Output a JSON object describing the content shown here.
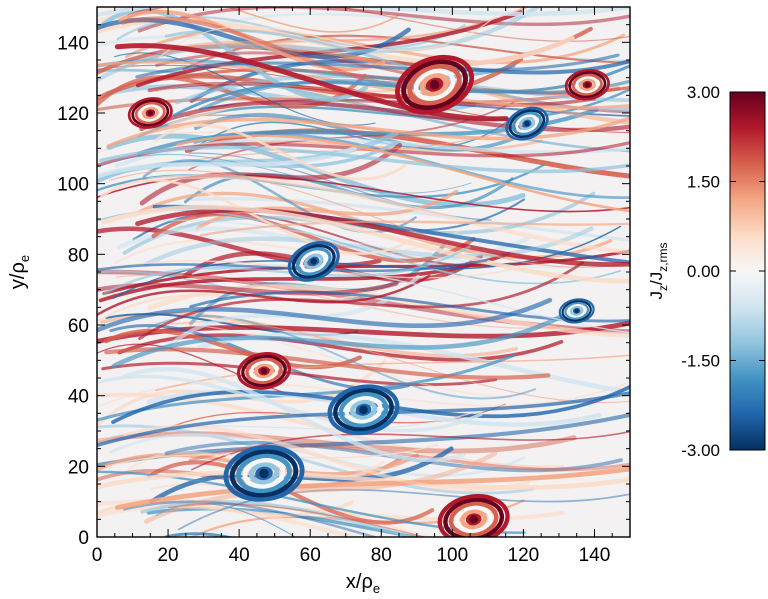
{
  "chart_data": {
    "type": "heatmap",
    "title": "",
    "x_axis": {
      "label": "x/ρ",
      "label_sub": "e",
      "range": [
        0,
        150
      ],
      "ticks": [
        0,
        20,
        40,
        60,
        80,
        100,
        120,
        140
      ]
    },
    "y_axis": {
      "label": "y/ρ",
      "label_sub": "e",
      "range": [
        0,
        150
      ],
      "ticks": [
        0,
        20,
        40,
        60,
        80,
        100,
        120,
        140
      ]
    },
    "colorbar": {
      "label": "J",
      "label_sub1": "z",
      "label_mid": "/J",
      "label_sub2": "z,rms",
      "range": [
        -3.0,
        3.0
      ],
      "ticks": [
        "3.00",
        "1.50",
        "0.00",
        "-1.50",
        "-3.00"
      ],
      "colormap": [
        "#053061",
        "#2166ac",
        "#4393c3",
        "#92c5de",
        "#d1e5f0",
        "#f7f7f7",
        "#fddbc7",
        "#f4a582",
        "#d6604d",
        "#b2182b",
        "#67001f"
      ]
    },
    "features": [
      {
        "kind": "vortex",
        "x": 47,
        "y": 18,
        "r": 9,
        "sign": -1
      },
      {
        "kind": "vortex",
        "x": 75,
        "y": 36,
        "r": 8,
        "sign": -1
      },
      {
        "kind": "vortex",
        "x": 61,
        "y": 78,
        "r": 6,
        "sign": -1
      },
      {
        "kind": "vortex",
        "x": 135,
        "y": 64,
        "r": 4,
        "sign": -1
      },
      {
        "kind": "vortex",
        "x": 15,
        "y": 120,
        "r": 5,
        "sign": 1
      },
      {
        "kind": "vortex",
        "x": 95,
        "y": 128,
        "r": 9,
        "sign": 1
      },
      {
        "kind": "vortex",
        "x": 106,
        "y": 5,
        "r": 8,
        "sign": 1
      },
      {
        "kind": "vortex",
        "x": 47,
        "y": 47,
        "r": 6,
        "sign": 1
      },
      {
        "kind": "vortex",
        "x": 138,
        "y": 128,
        "r": 5,
        "sign": 1
      },
      {
        "kind": "vortex",
        "x": 121,
        "y": 117,
        "r": 5,
        "sign": -1
      }
    ]
  }
}
